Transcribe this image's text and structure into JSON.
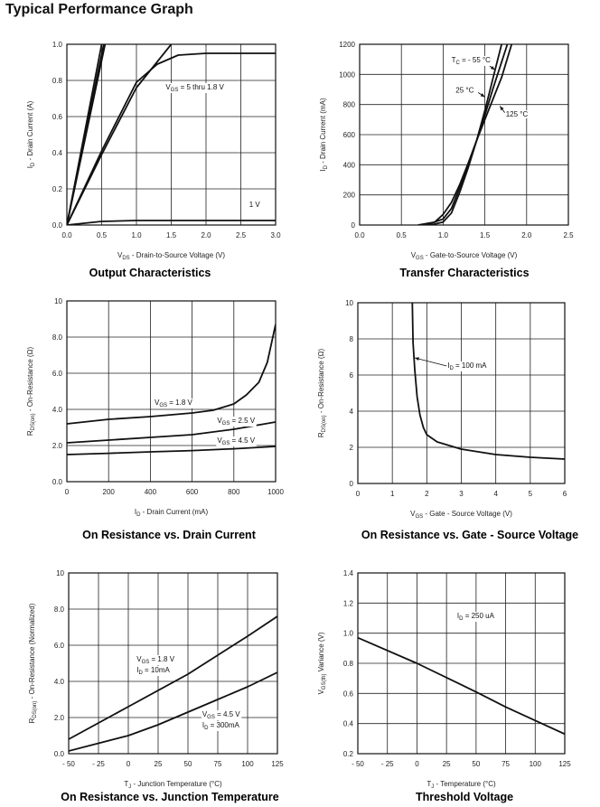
{
  "page": {
    "title": "Typical Performance Graph"
  },
  "chart_data": [
    {
      "id": "output",
      "type": "line",
      "title": "Output Characteristics",
      "xlabel": [
        [
          "V",
          ""
        ],
        [
          "DS",
          "sub"
        ],
        [
          " - Drain-to-Source Voltage (V)",
          ""
        ]
      ],
      "ylabel": [
        [
          "I",
          ""
        ],
        [
          "D",
          "sub"
        ],
        [
          " - Drain Current (A)",
          ""
        ]
      ],
      "xlim": [
        0,
        3
      ],
      "ylim": [
        0,
        1
      ],
      "xticks": [
        0,
        0.5,
        1,
        1.5,
        2,
        2.5,
        3
      ],
      "xtick_labels": [
        "0.0",
        "0.5",
        "1.0",
        "1.5",
        "2.0",
        "2.5",
        "3.0"
      ],
      "yticks": [
        0,
        0.2,
        0.4,
        0.6,
        0.8,
        1.0
      ],
      "ytick_labels": [
        "0.0",
        "0.2",
        "0.4",
        "0.6",
        "0.8",
        "1.0"
      ],
      "grid": true,
      "series": [
        {
          "points": [
            [
              0,
              0
            ],
            [
              0.5,
              1.0
            ]
          ]
        },
        {
          "points": [
            [
              0,
              0
            ],
            [
              0.53,
              1.0
            ]
          ]
        },
        {
          "points": [
            [
              0,
              0
            ],
            [
              0.55,
              1.0
            ]
          ]
        },
        {
          "points": [
            [
              0,
              0
            ],
            [
              0.5,
              0.39
            ],
            [
              1.0,
              0.76
            ],
            [
              1.5,
              1.0
            ]
          ]
        },
        {
          "points": [
            [
              0,
              0
            ],
            [
              0.5,
              0.41
            ],
            [
              1.0,
              0.79
            ],
            [
              1.3,
              0.89
            ],
            [
              1.6,
              0.94
            ],
            [
              2.0,
              0.95
            ],
            [
              3.0,
              0.95
            ]
          ]
        },
        {
          "points": [
            [
              0,
              0
            ],
            [
              0.5,
              0.02
            ],
            [
              1.0,
              0.025
            ],
            [
              2.0,
              0.025
            ],
            [
              3.0,
              0.025
            ]
          ]
        }
      ],
      "annotations": [
        {
          "x": 1.42,
          "y": 0.75,
          "parts": [
            [
              "V",
              ""
            ],
            [
              "GS",
              "sub"
            ],
            [
              " = 5 thru 1.8 V",
              ""
            ]
          ]
        },
        {
          "x": 2.62,
          "y": 0.1,
          "parts": [
            [
              "1 V",
              ""
            ]
          ]
        }
      ]
    },
    {
      "id": "transfer",
      "type": "line",
      "title": "Transfer Characteristics",
      "xlabel": [
        [
          "V",
          ""
        ],
        [
          "GS",
          "sub"
        ],
        [
          " - Gate-to-Source Voltage (V)",
          ""
        ]
      ],
      "ylabel": [
        [
          "I",
          ""
        ],
        [
          "D",
          "sub"
        ],
        [
          " - Drain Current (mA)",
          ""
        ]
      ],
      "xlim": [
        0,
        2.5
      ],
      "ylim": [
        0,
        1200
      ],
      "xticks": [
        0,
        0.5,
        1,
        1.5,
        2,
        2.5
      ],
      "xtick_labels": [
        "0.0",
        "0.5",
        "1.0",
        "1.5",
        "2.0",
        "2.5"
      ],
      "yticks": [
        0,
        200,
        400,
        600,
        800,
        1000,
        1200
      ],
      "ytick_labels": [
        "0",
        "200",
        "400",
        "600",
        "800",
        "1000",
        "1200"
      ],
      "grid": true,
      "series": [
        {
          "name": "T_C = -55 °C",
          "points": [
            [
              0.85,
              0
            ],
            [
              1.0,
              20
            ],
            [
              1.1,
              80
            ],
            [
              1.2,
              220
            ],
            [
              1.3,
              380
            ],
            [
              1.4,
              560
            ],
            [
              1.5,
              760
            ],
            [
              1.6,
              980
            ],
            [
              1.7,
              1200
            ]
          ]
        },
        {
          "name": "25 °C",
          "points": [
            [
              0.8,
              0
            ],
            [
              1.0,
              40
            ],
            [
              1.1,
              110
            ],
            [
              1.2,
              250
            ],
            [
              1.3,
              400
            ],
            [
              1.4,
              560
            ],
            [
              1.5,
              730
            ],
            [
              1.6,
              910
            ],
            [
              1.77,
              1200
            ]
          ]
        },
        {
          "name": "125 °C",
          "points": [
            [
              0.7,
              0
            ],
            [
              0.9,
              20
            ],
            [
              1.0,
              70
            ],
            [
              1.1,
              150
            ],
            [
              1.2,
              270
            ],
            [
              1.3,
              410
            ],
            [
              1.4,
              560
            ],
            [
              1.5,
              700
            ],
            [
              1.6,
              840
            ],
            [
              1.7,
              980
            ],
            [
              1.82,
              1200
            ]
          ]
        }
      ],
      "annotations": [
        {
          "x": 1.1,
          "y": 1080,
          "parts": [
            [
              "T",
              ""
            ],
            [
              "C",
              "sub"
            ],
            [
              " = - 55 °C",
              ""
            ]
          ]
        },
        {
          "x": 1.15,
          "y": 880,
          "parts": [
            [
              "25 °C",
              ""
            ]
          ]
        },
        {
          "x": 1.75,
          "y": 720,
          "parts": [
            [
              "125 °C",
              ""
            ]
          ]
        }
      ],
      "arrows": [
        {
          "from": [
            1.55,
            1060
          ],
          "to": [
            1.62,
            1030
          ]
        },
        {
          "from": [
            1.42,
            880
          ],
          "to": [
            1.5,
            850
          ]
        },
        {
          "from": [
            1.74,
            745
          ],
          "to": [
            1.68,
            790
          ]
        }
      ]
    },
    {
      "id": "ron-current",
      "type": "line",
      "title": "On Resistance vs. Drain Current",
      "xlabel": [
        [
          "I",
          ""
        ],
        [
          "D",
          "sub"
        ],
        [
          " - Drain Current (mA)",
          ""
        ]
      ],
      "ylabel": [
        [
          "R",
          ""
        ],
        [
          "DS(on)",
          "sub"
        ],
        [
          " - On-Resistance (Ω)",
          ""
        ]
      ],
      "xlim": [
        0,
        1000
      ],
      "ylim": [
        0,
        10
      ],
      "xticks": [
        0,
        200,
        400,
        600,
        800,
        1000
      ],
      "xtick_labels": [
        "0",
        "200",
        "400",
        "600",
        "800",
        "1000"
      ],
      "yticks": [
        0,
        2,
        4,
        6,
        8,
        10
      ],
      "ytick_labels": [
        "0.0",
        "2.0",
        "4.0",
        "6.0",
        "8.0",
        "10"
      ],
      "grid": true,
      "series": [
        {
          "name": "V_GS = 1.8 V",
          "points": [
            [
              0,
              3.2
            ],
            [
              200,
              3.45
            ],
            [
              400,
              3.6
            ],
            [
              600,
              3.8
            ],
            [
              700,
              3.95
            ],
            [
              800,
              4.3
            ],
            [
              860,
              4.8
            ],
            [
              920,
              5.5
            ],
            [
              960,
              6.6
            ],
            [
              1000,
              8.7
            ]
          ]
        },
        {
          "name": "V_GS = 2.5 V",
          "points": [
            [
              0,
              2.15
            ],
            [
              200,
              2.3
            ],
            [
              400,
              2.45
            ],
            [
              600,
              2.6
            ],
            [
              800,
              2.9
            ],
            [
              1000,
              3.3
            ]
          ]
        },
        {
          "name": "V_GS = 4.5 V",
          "points": [
            [
              0,
              1.5
            ],
            [
              200,
              1.57
            ],
            [
              400,
              1.65
            ],
            [
              600,
              1.72
            ],
            [
              800,
              1.82
            ],
            [
              1000,
              1.95
            ]
          ]
        }
      ],
      "annotations": [
        {
          "x": 420,
          "y": 4.25,
          "parts": [
            [
              "V",
              ""
            ],
            [
              "GS",
              "sub"
            ],
            [
              " = 1.8 V",
              ""
            ]
          ]
        },
        {
          "x": 720,
          "y": 3.25,
          "parts": [
            [
              "V",
              ""
            ],
            [
              "GS",
              "sub"
            ],
            [
              " = 2.5 V",
              ""
            ]
          ]
        },
        {
          "x": 720,
          "y": 2.15,
          "parts": [
            [
              "V",
              ""
            ],
            [
              "GS",
              "sub"
            ],
            [
              " = 4.5 V",
              ""
            ]
          ]
        }
      ]
    },
    {
      "id": "ron-vgs",
      "type": "line",
      "title": "On Resistance vs. Gate - Source Voltage",
      "xlabel": [
        [
          "V",
          ""
        ],
        [
          "GS",
          "sub"
        ],
        [
          " - Gate - Source Voltage (V)",
          ""
        ]
      ],
      "ylabel": [
        [
          "R",
          ""
        ],
        [
          "DS(on)",
          "sub"
        ],
        [
          " - On-Resistance (Ω)",
          ""
        ]
      ],
      "xlim": [
        0,
        6
      ],
      "ylim": [
        0,
        10
      ],
      "xticks": [
        0,
        1,
        2,
        3,
        4,
        5,
        6
      ],
      "xtick_labels": [
        "0",
        "1",
        "2",
        "3",
        "4",
        "5",
        "6"
      ],
      "yticks": [
        0,
        2,
        4,
        6,
        8,
        10
      ],
      "ytick_labels": [
        "0",
        "2",
        "4",
        "6",
        "8",
        "10"
      ],
      "grid": true,
      "series": [
        {
          "name": "I_D = 100 mA",
          "points": [
            [
              1.58,
              10
            ],
            [
              1.6,
              7.8
            ],
            [
              1.65,
              6.3
            ],
            [
              1.72,
              4.8
            ],
            [
              1.8,
              3.8
            ],
            [
              1.9,
              3.1
            ],
            [
              2.0,
              2.7
            ],
            [
              2.3,
              2.3
            ],
            [
              3.0,
              1.9
            ],
            [
              4.0,
              1.6
            ],
            [
              5.0,
              1.45
            ],
            [
              6.0,
              1.35
            ]
          ]
        }
      ],
      "annotations": [
        {
          "x": 2.6,
          "y": 6.4,
          "parts": [
            [
              "I",
              ""
            ],
            [
              "D",
              "sub"
            ],
            [
              " = 100 mA",
              ""
            ]
          ]
        }
      ],
      "arrows": [
        {
          "from": [
            2.58,
            6.5
          ],
          "to": [
            1.65,
            6.95
          ]
        }
      ]
    },
    {
      "id": "ron-temp",
      "type": "line",
      "title": "On Resistance vs. Junction Temperature",
      "xlabel": [
        [
          "T",
          ""
        ],
        [
          "J",
          "sub"
        ],
        [
          " - Junction Temperature (°C)",
          ""
        ]
      ],
      "ylabel": [
        [
          "R",
          ""
        ],
        [
          "DS(on)",
          "sub"
        ],
        [
          " - On-Resistance (Normalized)",
          ""
        ]
      ],
      "xlim": [
        -50,
        125
      ],
      "ylim": [
        0,
        10
      ],
      "xticks": [
        -50,
        -25,
        0,
        25,
        50,
        75,
        100,
        125
      ],
      "xtick_labels": [
        "- 50",
        "- 25",
        "0",
        "25",
        "50",
        "75",
        "100",
        "125"
      ],
      "yticks": [
        0,
        2,
        4,
        6,
        8,
        10
      ],
      "ytick_labels": [
        "0.0",
        "2.0",
        "4.0",
        "6.0",
        "8.0",
        "10"
      ],
      "grid": true,
      "series": [
        {
          "name": "V_GS = 1.8 V, I_D = 10mA",
          "points": [
            [
              -50,
              0.8
            ],
            [
              0,
              2.6
            ],
            [
              50,
              4.4
            ],
            [
              100,
              6.5
            ],
            [
              125,
              7.6
            ]
          ]
        },
        {
          "name": "V_GS = 4.5 V, I_D = 300mA",
          "points": [
            [
              -50,
              0.15
            ],
            [
              0,
              1.0
            ],
            [
              25,
              1.6
            ],
            [
              50,
              2.3
            ],
            [
              75,
              3.0
            ],
            [
              100,
              3.7
            ],
            [
              125,
              4.5
            ]
          ]
        }
      ],
      "annotations": [
        {
          "x": 7,
          "y": 5.1,
          "parts": [
            [
              "V",
              ""
            ],
            [
              "GS",
              "sub"
            ],
            [
              " = 1.8 V",
              ""
            ]
          ]
        },
        {
          "x": 7,
          "y": 4.5,
          "parts": [
            [
              "I",
              ""
            ],
            [
              "D",
              "sub"
            ],
            [
              " = 10mA",
              ""
            ]
          ]
        },
        {
          "x": 62,
          "y": 2.05,
          "parts": [
            [
              "V",
              ""
            ],
            [
              "GS",
              "sub"
            ],
            [
              " = 4.5 V",
              ""
            ]
          ]
        },
        {
          "x": 62,
          "y": 1.45,
          "parts": [
            [
              "I",
              ""
            ],
            [
              "D",
              "sub"
            ],
            [
              " = 300mA",
              ""
            ]
          ]
        }
      ]
    },
    {
      "id": "threshold",
      "type": "line",
      "title": "Threshold Voltage",
      "xlabel": [
        [
          "T",
          ""
        ],
        [
          "J",
          "sub"
        ],
        [
          " - Temperature (°C)",
          ""
        ]
      ],
      "ylabel": [
        [
          "V",
          ""
        ],
        [
          "GS(th)",
          "sub"
        ],
        [
          " Variance (V)",
          ""
        ]
      ],
      "xlim": [
        -50,
        125
      ],
      "ylim": [
        0.2,
        1.4
      ],
      "xticks": [
        -50,
        -25,
        0,
        25,
        50,
        75,
        100,
        125
      ],
      "xtick_labels": [
        "- 50",
        "- 25",
        "0",
        "25",
        "50",
        "75",
        "100",
        "125"
      ],
      "yticks": [
        0.2,
        0.4,
        0.6,
        0.8,
        1.0,
        1.2,
        1.4
      ],
      "ytick_labels": [
        "0.2",
        "0.4",
        "0.6",
        "0.8",
        "1.0",
        "1.2",
        "1.4"
      ],
      "grid": true,
      "series": [
        {
          "name": "I_D = 250 uA",
          "points": [
            [
              -50,
              0.97
            ],
            [
              0,
              0.8
            ],
            [
              50,
              0.61
            ],
            [
              75,
              0.51
            ],
            [
              100,
              0.42
            ],
            [
              125,
              0.33
            ]
          ]
        }
      ],
      "annotations": [
        {
          "x": 34,
          "y": 1.1,
          "parts": [
            [
              "I",
              ""
            ],
            [
              "D",
              "sub"
            ],
            [
              " = 250 uA",
              ""
            ]
          ]
        }
      ]
    }
  ]
}
